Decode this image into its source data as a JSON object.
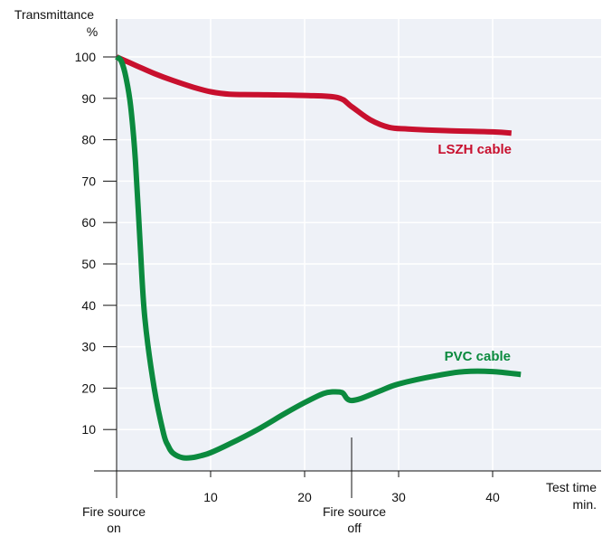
{
  "chart_data": {
    "type": "line",
    "ylabel": "Transmittance",
    "yunit": "%",
    "xlabel": "Test time",
    "xunit": "min.",
    "xlim": [
      0,
      43
    ],
    "ylim": [
      0,
      110
    ],
    "xticks": [
      10,
      20,
      30,
      40
    ],
    "yticks": [
      10,
      20,
      30,
      40,
      50,
      60,
      70,
      80,
      90,
      100
    ],
    "grid": true,
    "annotations": [
      {
        "name": "fire-on",
        "line1": "Fire source",
        "line2": "on",
        "x": 0
      },
      {
        "name": "fire-off",
        "line1": "Fire source",
        "line2": "off",
        "x": 25
      }
    ],
    "series": [
      {
        "name": "LSZH cable",
        "color": "#c8102e",
        "x": [
          0,
          2,
          4,
          6,
          8,
          10,
          12,
          15,
          20,
          23.5,
          25,
          27,
          29,
          31,
          35,
          40,
          42
        ],
        "y": [
          100,
          98,
          96,
          94.3,
          92.8,
          91.6,
          91,
          90.9,
          90.7,
          90.2,
          88,
          84.8,
          83,
          82.6,
          82.2,
          81.9,
          81.6
        ]
      },
      {
        "name": "PVC cable",
        "color": "#0b8a3e",
        "x": [
          0,
          0.5,
          1,
          1.5,
          2,
          2.5,
          3,
          4,
          5,
          5.5,
          6,
          7,
          8,
          9,
          10,
          12,
          15,
          18,
          20,
          22,
          23,
          24,
          24.5,
          25,
          26,
          28,
          30,
          34,
          37,
          40,
          43
        ],
        "y": [
          100,
          99,
          95,
          88,
          75,
          55,
          37,
          20,
          9,
          6,
          4.3,
          3.2,
          3.2,
          3.7,
          4.4,
          6.5,
          10,
          14,
          16.5,
          18.7,
          19.1,
          18.9,
          17.5,
          17,
          17.5,
          19.3,
          21,
          23,
          24,
          24,
          23.3
        ]
      }
    ]
  }
}
